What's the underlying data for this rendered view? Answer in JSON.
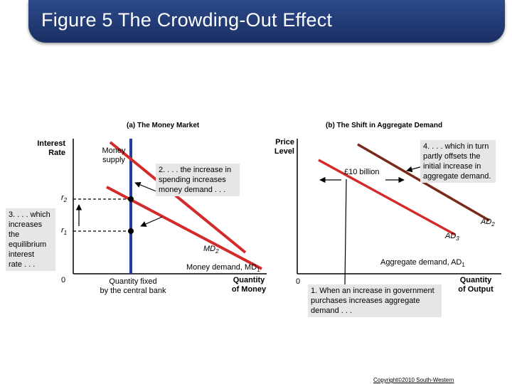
{
  "slide": {
    "title": "Figure 5 The Crowding-Out Effect",
    "copyright": "Copyright©2010 South-Western"
  },
  "panel_a": {
    "heading": "(a) The Money Market",
    "y_axis": [
      "Interest",
      "Rate"
    ],
    "x_axis": [
      "Quantity",
      "of Money"
    ],
    "origin": "0",
    "r2": "r",
    "r2_sub": "2",
    "r1": "r",
    "r1_sub": "1",
    "money_supply": [
      "Money",
      "supply"
    ],
    "qty_fixed": [
      "Quantity fixed",
      "by the central bank"
    ],
    "md2": "MD",
    "md2_sub": "2",
    "md1": "Money demand,  MD",
    "md1_sub": "1",
    "note_increase": [
      "2. . . . the increase in",
      "spending increases",
      "money demand . . ."
    ],
    "note_rate": [
      "3. . . . which",
      "increases",
      "the",
      "equilibrium",
      "interest",
      "rate . . ."
    ]
  },
  "panel_b": {
    "heading": "(b) The Shift in Aggregate Demand",
    "y_axis": [
      "Price",
      "Level"
    ],
    "x_axis": [
      "Quantity",
      "of Output"
    ],
    "origin": "0",
    "ten_billion": "£10 billion",
    "ad2": "AD",
    "ad2_sub": "2",
    "ad3": "AD",
    "ad3_sub": "3",
    "ad1": "Aggregate demand,  AD",
    "ad1_sub": "1",
    "note_offset": [
      "4. . . . which in turn",
      "partly offsets the",
      "initial increase in",
      "aggregate demand."
    ],
    "note_purchases": [
      "1. When an increase in government",
      "purchases increases aggregate",
      "demand . . ."
    ]
  },
  "colors": {
    "title_bg": "#1f3a75",
    "supply": "#1f3f9a",
    "demand": "#d32b2b",
    "ad_shift": "#7a2a1a",
    "annotation_bg": "#e6e6e6"
  }
}
